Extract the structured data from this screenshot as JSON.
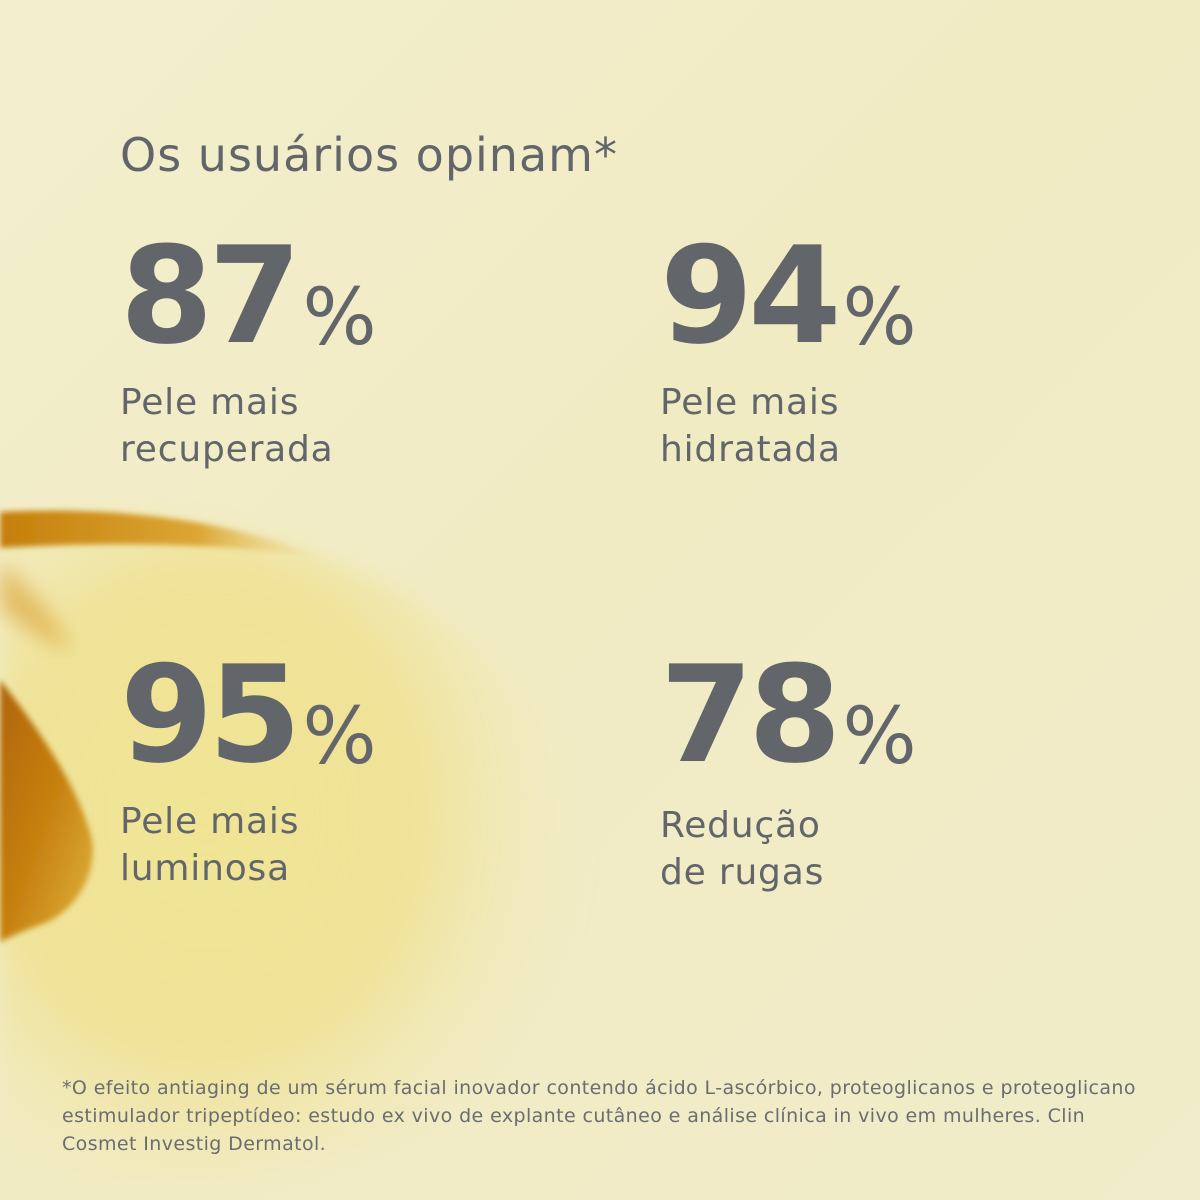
{
  "title": "Os usuários opinam*",
  "stats": [
    {
      "value": "87",
      "percent": "%",
      "label_line1": "Pele mais",
      "label_line2": "recuperada"
    },
    {
      "value": "94",
      "percent": "%",
      "label_line1": "Pele mais",
      "label_line2": "hidratada"
    },
    {
      "value": "95",
      "percent": "%",
      "label_line1": "Pele mais",
      "label_line2": "luminosa"
    },
    {
      "value": "78",
      "percent": "%",
      "label_line1": "Redução",
      "label_line2": "de rugas"
    }
  ],
  "footnote": "*O efeito antiaging de um sérum facial inovador contendo ácido L-ascórbico, proteoglicanos e proteoglicano estimulador tripeptídeo: estudo ex vivo de explante cutâneo e análise clínica in vivo em mulheres. Clin Cosmet Investig Dermatol.",
  "colors": {
    "background": "#f2edc8",
    "text": "#62666b",
    "serum_drop": "#c98a10"
  }
}
